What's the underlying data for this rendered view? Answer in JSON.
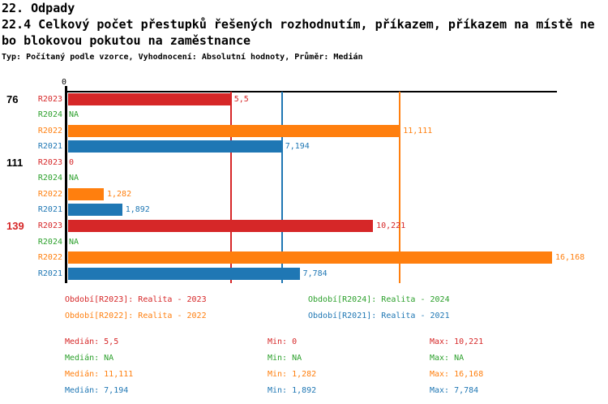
{
  "title": "22. Odpady",
  "subtitle_line1": "22.4 Celkový počet přestupků řešených rozhodnutím, příkazem, příkazem na místě ne",
  "subtitle_line2": "bo blokovou pokutou na zaměstnance",
  "meta": "Typ: Počítaný podle vzorce, Vyhodnocení: Absolutní hodnoty, Průměr: Medián",
  "colors": {
    "r2023": "#d62728",
    "r2024": "#2ca02c",
    "r2022": "#ff7f0e",
    "r2021": "#1f77b4",
    "axis": "#000000"
  },
  "chart_data": {
    "type": "bar",
    "orientation": "horizontal",
    "axis_zero_label": "0",
    "x_axis": {
      "min": 0,
      "visible_tick_labels": [
        "0"
      ],
      "grid": false
    },
    "series_order": [
      "R2023",
      "R2024",
      "R2022",
      "R2021"
    ],
    "groups": [
      {
        "label": "76",
        "label_color": "#000000",
        "rows": [
          {
            "series": "R2023",
            "value": 5.5,
            "display": "5,5"
          },
          {
            "series": "R2024",
            "value": null,
            "display": "NA"
          },
          {
            "series": "R2022",
            "value": 11.111,
            "display": "11,111"
          },
          {
            "series": "R2021",
            "value": 7.194,
            "display": "7,194"
          }
        ]
      },
      {
        "label": "111",
        "label_color": "#000000",
        "rows": [
          {
            "series": "R2023",
            "value": 0,
            "display": "0"
          },
          {
            "series": "R2024",
            "value": null,
            "display": "NA"
          },
          {
            "series": "R2022",
            "value": 1.282,
            "display": "1,282"
          },
          {
            "series": "R2021",
            "value": 1.892,
            "display": "1,892"
          }
        ]
      },
      {
        "label": "139",
        "label_color": "#d62728",
        "rows": [
          {
            "series": "R2023",
            "value": 10.221,
            "display": "10,221"
          },
          {
            "series": "R2024",
            "value": null,
            "display": "NA"
          },
          {
            "series": "R2022",
            "value": 16.168,
            "display": "16,168"
          },
          {
            "series": "R2021",
            "value": 7.784,
            "display": "7,784"
          }
        ]
      }
    ],
    "median_lines": [
      {
        "series": "R2023",
        "value": 5.5
      },
      {
        "series": "R2021",
        "value": 7.194
      },
      {
        "series": "R2022",
        "value": 11.111
      }
    ]
  },
  "legend": {
    "r2023": "Období[R2023]: Realita - 2023",
    "r2024": "Období[R2024]: Realita - 2024",
    "r2022": "Období[R2022]: Realita - 2022",
    "r2021": "Období[R2021]: Realita - 2021"
  },
  "stats": {
    "r2023": {
      "median": "Medián: 5,5",
      "min": "Min: 0",
      "max": "Max: 10,221"
    },
    "r2024": {
      "median": "Medián: NA",
      "min": "Min: NA",
      "max": "Max: NA"
    },
    "r2022": {
      "median": "Medián: 11,111",
      "min": "Min: 1,282",
      "max": "Max: 16,168"
    },
    "r2021": {
      "median": "Medián: 7,194",
      "min": "Min: 1,892",
      "max": "Max: 7,784"
    }
  }
}
